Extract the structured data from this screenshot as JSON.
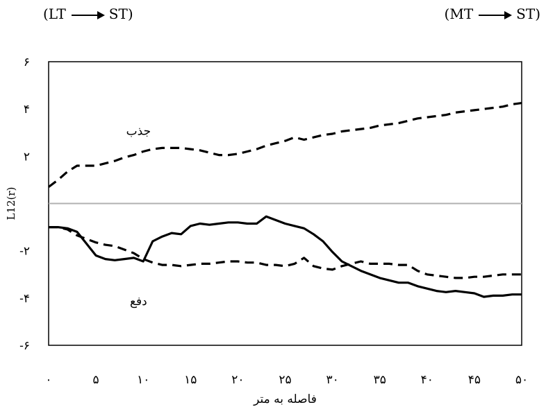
{
  "header": {
    "left": {
      "from": "(LT",
      "to": "ST)"
    },
    "right": {
      "from": "(MT",
      "to": "ST)"
    }
  },
  "chart_data": {
    "type": "line",
    "xlabel": "فاصله به متر",
    "ylabel": "L12(r)",
    "xlim": [
      0,
      50
    ],
    "ylim": [
      -6,
      6
    ],
    "x_ticks": [
      0,
      5,
      10,
      15,
      20,
      25,
      30,
      35,
      40,
      45,
      50
    ],
    "x_tick_labels": [
      "۰",
      "۵",
      "۱۰",
      "۱۵",
      "۲۰",
      "۲۵",
      "۳۰",
      "۳۵",
      "۴۰",
      "۴۵",
      "۵۰"
    ],
    "y_ticks": [
      -6,
      -4,
      -2,
      2,
      4,
      6
    ],
    "y_tick_labels": [
      "-۶",
      "-۴",
      "-۲",
      "۲",
      "۴",
      "۶"
    ],
    "zero_line": true,
    "grid": false,
    "legend": "none",
    "annotations": [
      {
        "text": "جذب",
        "x": 9.5,
        "y": 2.9
      },
      {
        "text": "دفع",
        "x": 9.5,
        "y": -4.3
      }
    ],
    "series": [
      {
        "style": "dashed",
        "x": [
          0,
          1,
          2,
          3,
          4,
          5,
          6,
          7,
          8,
          9,
          10,
          11,
          12,
          13,
          14,
          15,
          16,
          17,
          18,
          19,
          20,
          21,
          22,
          23,
          24,
          25,
          26,
          27,
          28,
          29,
          30,
          31,
          32,
          33,
          34,
          35,
          36,
          37,
          38,
          39,
          40,
          41,
          42,
          43,
          44,
          45,
          46,
          47,
          48,
          49,
          50
        ],
        "y": [
          0.7,
          1.0,
          1.35,
          1.6,
          1.6,
          1.6,
          1.7,
          1.8,
          1.95,
          2.05,
          2.2,
          2.3,
          2.35,
          2.35,
          2.35,
          2.3,
          2.25,
          2.15,
          2.05,
          2.05,
          2.1,
          2.2,
          2.3,
          2.45,
          2.55,
          2.65,
          2.8,
          2.7,
          2.8,
          2.9,
          2.95,
          3.05,
          3.1,
          3.15,
          3.2,
          3.3,
          3.35,
          3.4,
          3.5,
          3.6,
          3.65,
          3.7,
          3.75,
          3.85,
          3.9,
          3.95,
          4.0,
          4.05,
          4.1,
          4.2,
          4.25
        ]
      },
      {
        "style": "dashed",
        "x": [
          0,
          1,
          2,
          3,
          4,
          5,
          6,
          7,
          8,
          9,
          10,
          11,
          12,
          13,
          14,
          15,
          16,
          17,
          18,
          19,
          20,
          21,
          22,
          23,
          24,
          25,
          26,
          27,
          28,
          29,
          30,
          31,
          32,
          33,
          34,
          35,
          36,
          37,
          38,
          39,
          40,
          41,
          42,
          43,
          44,
          45,
          46,
          47,
          48,
          49,
          50
        ],
        "y": [
          -1.0,
          -1.0,
          -1.1,
          -1.35,
          -1.5,
          -1.65,
          -1.75,
          -1.8,
          -1.95,
          -2.1,
          -2.35,
          -2.5,
          -2.6,
          -2.6,
          -2.65,
          -2.6,
          -2.55,
          -2.55,
          -2.5,
          -2.45,
          -2.45,
          -2.5,
          -2.5,
          -2.6,
          -2.6,
          -2.65,
          -2.55,
          -2.3,
          -2.65,
          -2.75,
          -2.8,
          -2.65,
          -2.55,
          -2.45,
          -2.55,
          -2.55,
          -2.55,
          -2.6,
          -2.6,
          -2.85,
          -3.0,
          -3.05,
          -3.1,
          -3.15,
          -3.15,
          -3.1,
          -3.1,
          -3.05,
          -3.0,
          -3.0,
          -3.0
        ]
      },
      {
        "style": "solid",
        "x": [
          0,
          1,
          2,
          3,
          4,
          5,
          6,
          7,
          8,
          9,
          10,
          11,
          12,
          13,
          14,
          15,
          16,
          17,
          18,
          19,
          20,
          21,
          22,
          23,
          24,
          25,
          26,
          27,
          28,
          29,
          30,
          31,
          32,
          33,
          34,
          35,
          36,
          37,
          38,
          39,
          40,
          41,
          42,
          43,
          44,
          45,
          46,
          47,
          48,
          49,
          50
        ],
        "y": [
          -1.0,
          -1.0,
          -1.05,
          -1.2,
          -1.7,
          -2.2,
          -2.35,
          -2.4,
          -2.35,
          -2.3,
          -2.45,
          -1.6,
          -1.4,
          -1.25,
          -1.3,
          -0.95,
          -0.85,
          -0.9,
          -0.85,
          -0.8,
          -0.8,
          -0.85,
          -0.85,
          -0.55,
          -0.7,
          -0.85,
          -0.95,
          -1.05,
          -1.3,
          -1.6,
          -2.05,
          -2.45,
          -2.65,
          -2.85,
          -3.0,
          -3.15,
          -3.25,
          -3.35,
          -3.35,
          -3.5,
          -3.6,
          -3.7,
          -3.75,
          -3.7,
          -3.75,
          -3.8,
          -3.95,
          -3.9,
          -3.9,
          -3.85,
          -3.85
        ]
      }
    ]
  }
}
